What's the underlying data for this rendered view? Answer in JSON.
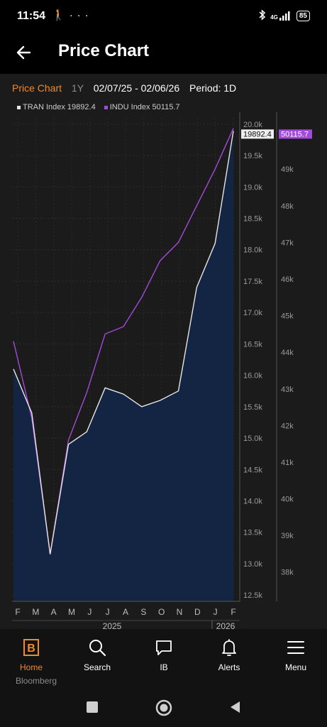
{
  "status_bar": {
    "time": "11:54",
    "left_icons": [
      "walking-icon",
      "more-dots-icon"
    ],
    "right_icons": [
      "bluetooth-icon",
      "signal-4g-icon"
    ],
    "network_label": "4G",
    "battery": "85"
  },
  "app_bar": {
    "title": "Price Chart",
    "back_icon": "back-arrow-icon"
  },
  "chart_header": {
    "title": "Price Chart",
    "range": "1Y",
    "dates": "02/07/25 - 02/06/26",
    "period": "Period: 1D"
  },
  "colors": {
    "accent": "#f08a2b",
    "tran_line": "#e6e6e6",
    "indu_line": "#a24ad9",
    "area_fill": "#142544",
    "panel_bg": "#1b1b1b"
  },
  "chart_data": {
    "type": "line",
    "x": [
      "Feb",
      "Mar",
      "Apr",
      "May",
      "Jun",
      "Jul",
      "Aug",
      "Sep",
      "Oct",
      "Nov",
      "Dec",
      "Jan",
      "Feb"
    ],
    "series": [
      {
        "name": "TRAN Index",
        "last_value": "19892.4",
        "axis": "left",
        "values": [
          16100,
          15400,
          13150,
          14900,
          15100,
          15800,
          15700,
          15500,
          15600,
          15750,
          17400,
          18100,
          19892.4
        ]
      },
      {
        "name": "INDU Index",
        "last_value": "50115.7",
        "axis": "right",
        "values": [
          44300,
          42200,
          38500,
          41600,
          42900,
          44500,
          44700,
          45500,
          46500,
          47000,
          48000,
          49000,
          50115.7
        ]
      }
    ],
    "left_axis": {
      "ticks": [
        "20.0k",
        "19.5k",
        "19.0k",
        "18.5k",
        "18.0k",
        "17.5k",
        "17.0k",
        "16.5k",
        "16.0k",
        "15.5k",
        "15.0k",
        "14.5k",
        "14.0k",
        "13.5k",
        "13.0k",
        "12.5k"
      ],
      "range": [
        12400,
        20100
      ]
    },
    "right_axis": {
      "ticks": [
        "50k",
        "49k",
        "48k",
        "47k",
        "46k",
        "45k",
        "44k",
        "43k",
        "42k",
        "41k",
        "40k",
        "39k",
        "38k"
      ],
      "range": [
        37200,
        50400
      ]
    },
    "month_labels": [
      "F",
      "M",
      "A",
      "M",
      "J",
      "J",
      "A",
      "S",
      "O",
      "N",
      "D",
      "J",
      "F"
    ],
    "year_labels": [
      "2025",
      "2026"
    ],
    "legend": "top-left"
  },
  "tab_bar": {
    "items": [
      {
        "label": "Home",
        "icon": "bloomberg-b-icon",
        "active": true
      },
      {
        "label": "Search",
        "icon": "search-icon",
        "active": false
      },
      {
        "label": "IB",
        "icon": "chat-icon",
        "active": false
      },
      {
        "label": "Alerts",
        "icon": "bell-icon",
        "active": false
      },
      {
        "label": "Menu",
        "icon": "menu-icon",
        "active": false
      }
    ]
  },
  "brand": "Bloomberg",
  "nav_bar": [
    "recents-square-icon",
    "home-circle-icon",
    "back-triangle-icon"
  ]
}
